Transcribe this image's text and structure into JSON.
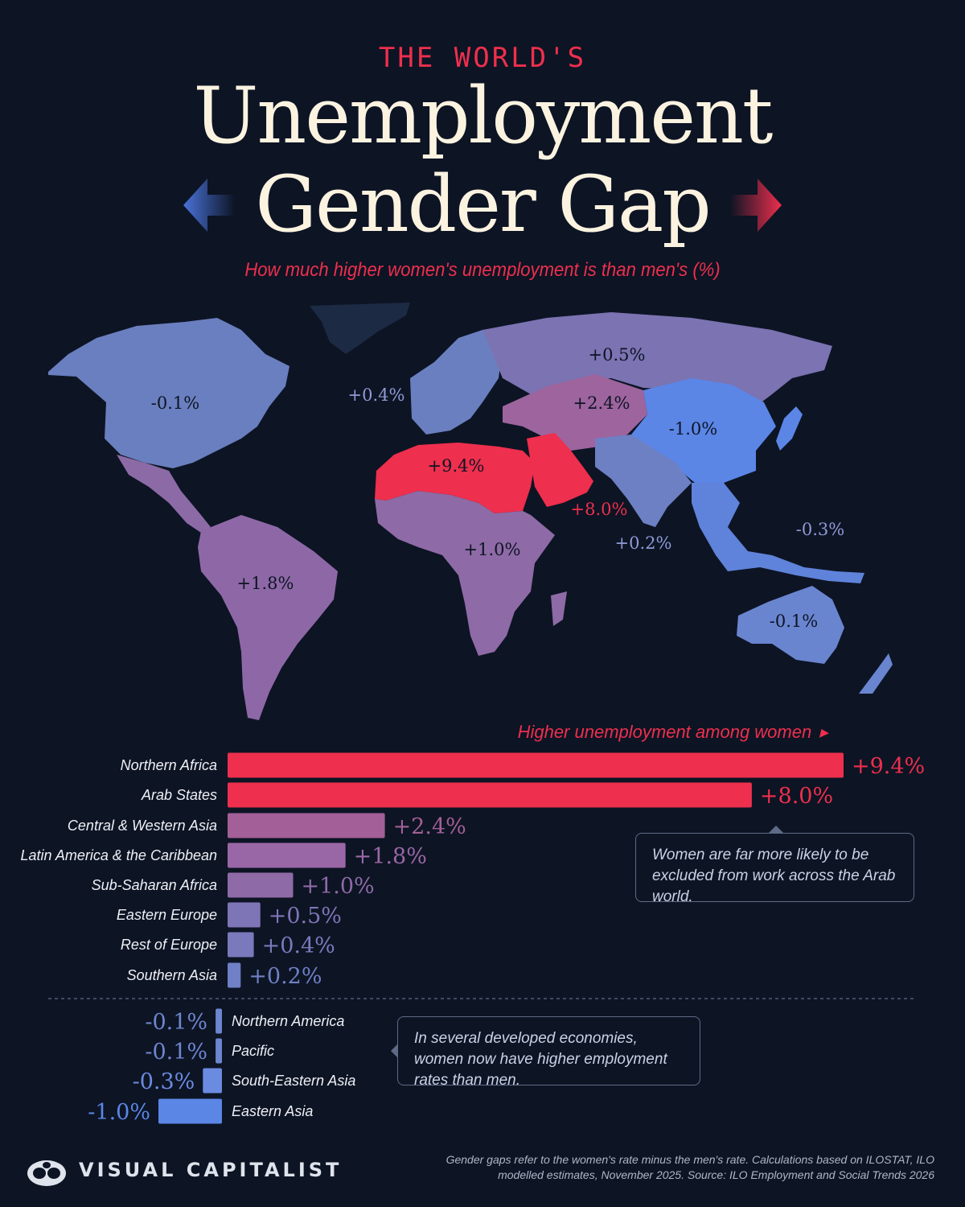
{
  "header": {
    "kicker": "THE WORLD'S",
    "title_line1": "Unemployment",
    "title_line2": "Gender Gap",
    "subtitle": "How much higher women's unemployment is than men's (%)"
  },
  "colors": {
    "background": "#0d1424",
    "high": "#ee2f4d",
    "mid": "#8e6aa6",
    "low": "#5b7fe0"
  },
  "map_labels": {
    "northern_america": "-0.1%",
    "rest_of_europe": "+0.4%",
    "eastern_europe": "+0.5%",
    "central_western_asia": "+2.4%",
    "eastern_asia": "-1.0%",
    "northern_africa": "+9.4%",
    "arab_states": "+8.0%",
    "sub_saharan_africa": "+1.0%",
    "southern_asia": "+0.2%",
    "south_eastern_asia": "-0.3%",
    "latin_america": "+1.8%",
    "pacific": "-0.1%"
  },
  "bar_header": "Higher unemployment among women",
  "chart_data": {
    "type": "bar",
    "orientation": "horizontal",
    "unit": "%",
    "categories": [
      "Northern Africa",
      "Arab States",
      "Central & Western Asia",
      "Latin America & the Caribbean",
      "Sub-Saharan Africa",
      "Eastern Europe",
      "Rest of Europe",
      "Southern Asia",
      "Northern America",
      "Pacific",
      "South-Eastern Asia",
      "Eastern Asia"
    ],
    "values": [
      9.4,
      8.0,
      2.4,
      1.8,
      1.0,
      0.5,
      0.4,
      0.2,
      -0.1,
      -0.1,
      -0.3,
      -1.0
    ],
    "value_labels": [
      "+9.4%",
      "+8.0%",
      "+2.4%",
      "+1.8%",
      "+1.0%",
      "+0.5%",
      "+0.4%",
      "+0.2%",
      "-0.1%",
      "-0.1%",
      "-0.3%",
      "-1.0%"
    ],
    "colors": [
      "#ee2f4d",
      "#ee2f4d",
      "#a35f97",
      "#9a67a6",
      "#8e6aa6",
      "#7e75b6",
      "#7a79bc",
      "#6f80c6",
      "#6d86cf",
      "#6d86cf",
      "#6a8be0",
      "#5b86e6"
    ],
    "xlim": [
      -1.0,
      9.4
    ]
  },
  "callouts": {
    "arab": "Women are far more likely to be excluded from work across the Arab world.",
    "developed": "In several developed economies, women now have higher employment rates than men."
  },
  "footer": {
    "brand": "VISUAL CAPITALIST",
    "note": "Gender gaps refer to the women's rate minus the men's rate. Calculations based on ILOSTAT, ILO modelled estimates, November 2025. Source: ILO Employment and Social Trends 2026"
  }
}
